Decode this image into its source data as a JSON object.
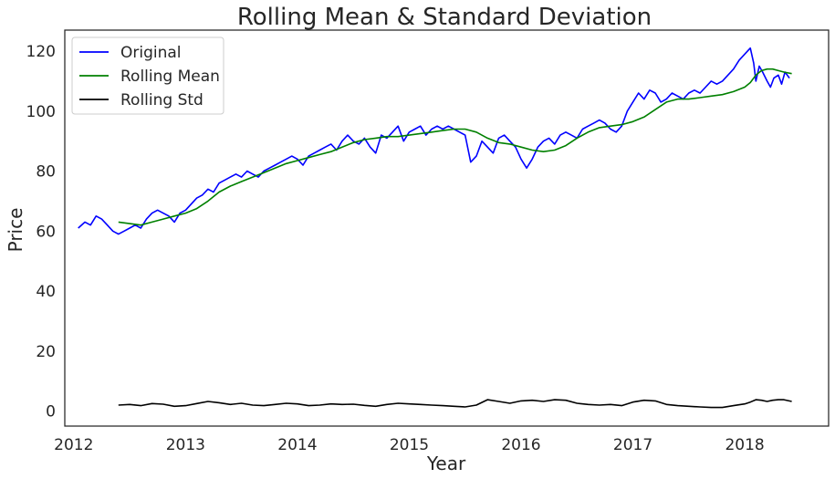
{
  "chart_data": {
    "type": "line",
    "title": "Rolling Mean & Standard Deviation",
    "xlabel": "Year",
    "ylabel": "Price",
    "xlim": [
      2011.92,
      2018.75
    ],
    "ylim": [
      -5,
      127
    ],
    "grid": false,
    "legend_position": "top-left",
    "x_ticks": [
      2012,
      2013,
      2014,
      2015,
      2016,
      2017,
      2018
    ],
    "y_ticks": [
      0,
      20,
      40,
      60,
      80,
      100,
      120
    ],
    "series": [
      {
        "name": "Original",
        "color": "#0000ff",
        "x": [
          2012.04,
          2012.1,
          2012.15,
          2012.2,
          2012.25,
          2012.3,
          2012.35,
          2012.4,
          2012.45,
          2012.5,
          2012.55,
          2012.6,
          2012.65,
          2012.7,
          2012.75,
          2012.8,
          2012.85,
          2012.9,
          2012.95,
          2013.0,
          2013.05,
          2013.1,
          2013.15,
          2013.2,
          2013.25,
          2013.3,
          2013.35,
          2013.4,
          2013.45,
          2013.5,
          2013.55,
          2013.6,
          2013.65,
          2013.7,
          2013.75,
          2013.8,
          2013.85,
          2013.9,
          2013.95,
          2014.0,
          2014.05,
          2014.1,
          2014.15,
          2014.2,
          2014.25,
          2014.3,
          2014.35,
          2014.4,
          2014.45,
          2014.5,
          2014.55,
          2014.6,
          2014.65,
          2014.7,
          2014.75,
          2014.8,
          2014.85,
          2014.9,
          2014.95,
          2015.0,
          2015.05,
          2015.1,
          2015.15,
          2015.2,
          2015.25,
          2015.3,
          2015.35,
          2015.4,
          2015.45,
          2015.5,
          2015.55,
          2015.6,
          2015.65,
          2015.7,
          2015.75,
          2015.8,
          2015.85,
          2015.9,
          2015.95,
          2016.0,
          2016.05,
          2016.1,
          2016.15,
          2016.2,
          2016.25,
          2016.3,
          2016.35,
          2016.4,
          2016.45,
          2016.5,
          2016.55,
          2016.6,
          2016.65,
          2016.7,
          2016.75,
          2016.8,
          2016.85,
          2016.9,
          2016.95,
          2017.0,
          2017.05,
          2017.1,
          2017.15,
          2017.2,
          2017.25,
          2017.3,
          2017.35,
          2017.4,
          2017.45,
          2017.5,
          2017.55,
          2017.6,
          2017.65,
          2017.7,
          2017.75,
          2017.8,
          2017.85,
          2017.9,
          2017.95,
          2018.0,
          2018.05,
          2018.08,
          2018.1,
          2018.13,
          2018.16,
          2018.2,
          2018.23,
          2018.26,
          2018.3,
          2018.33,
          2018.36,
          2018.4
        ],
        "y": [
          61,
          63,
          62,
          65,
          64,
          62,
          60,
          59,
          60,
          61,
          62,
          61,
          64,
          66,
          67,
          66,
          65,
          63,
          66,
          67,
          69,
          71,
          72,
          74,
          73,
          76,
          77,
          78,
          79,
          78,
          80,
          79,
          78,
          80,
          81,
          82,
          83,
          84,
          85,
          84,
          82,
          85,
          86,
          87,
          88,
          89,
          87,
          90,
          92,
          90,
          89,
          91,
          88,
          86,
          92,
          91,
          93,
          95,
          90,
          93,
          94,
          95,
          92,
          94,
          95,
          94,
          95,
          94,
          93,
          92,
          83,
          85,
          90,
          88,
          86,
          91,
          92,
          90,
          88,
          84,
          81,
          84,
          88,
          90,
          91,
          89,
          92,
          93,
          92,
          91,
          94,
          95,
          96,
          97,
          96,
          94,
          93,
          95,
          100,
          103,
          106,
          104,
          107,
          106,
          103,
          104,
          106,
          105,
          104,
          106,
          107,
          106,
          108,
          110,
          109,
          110,
          112,
          114,
          117,
          119,
          121,
          116,
          110,
          115,
          113,
          110,
          108,
          111,
          112,
          109,
          113,
          111
        ]
      },
      {
        "name": "Rolling Mean",
        "color": "#008000",
        "x": [
          2012.4,
          2012.5,
          2012.6,
          2012.7,
          2012.8,
          2012.9,
          2013.0,
          2013.1,
          2013.2,
          2013.3,
          2013.4,
          2013.5,
          2013.6,
          2013.7,
          2013.8,
          2013.9,
          2014.0,
          2014.1,
          2014.2,
          2014.3,
          2014.4,
          2014.5,
          2014.6,
          2014.7,
          2014.8,
          2014.9,
          2015.0,
          2015.1,
          2015.2,
          2015.3,
          2015.4,
          2015.5,
          2015.6,
          2015.7,
          2015.8,
          2015.9,
          2016.0,
          2016.1,
          2016.2,
          2016.3,
          2016.4,
          2016.5,
          2016.6,
          2016.7,
          2016.8,
          2016.9,
          2017.0,
          2017.1,
          2017.2,
          2017.3,
          2017.4,
          2017.5,
          2017.6,
          2017.7,
          2017.8,
          2017.9,
          2018.0,
          2018.05,
          2018.1,
          2018.15,
          2018.2,
          2018.25,
          2018.3,
          2018.35,
          2018.42
        ],
        "y": [
          63,
          62.5,
          62,
          63,
          64,
          65,
          66,
          67.5,
          70,
          73,
          75,
          76.5,
          78,
          79.5,
          81,
          82.5,
          83.5,
          84.5,
          85.5,
          86.5,
          88,
          89.5,
          90.5,
          91,
          91.5,
          91.5,
          92,
          92.5,
          93,
          93.5,
          94,
          94,
          93,
          91,
          89.5,
          89,
          88,
          87,
          86.5,
          87,
          88.5,
          91,
          93,
          94.5,
          95,
          95.5,
          96.5,
          98,
          100.5,
          103,
          104,
          104,
          104.5,
          105,
          105.5,
          106.5,
          108,
          109.5,
          112,
          113.5,
          114,
          114,
          113.5,
          113,
          112.5
        ]
      },
      {
        "name": "Rolling Std",
        "color": "#000000",
        "x": [
          2012.4,
          2012.5,
          2012.6,
          2012.7,
          2012.8,
          2012.9,
          2013.0,
          2013.1,
          2013.2,
          2013.3,
          2013.4,
          2013.5,
          2013.6,
          2013.7,
          2013.8,
          2013.9,
          2014.0,
          2014.1,
          2014.2,
          2014.3,
          2014.4,
          2014.5,
          2014.6,
          2014.7,
          2014.8,
          2014.9,
          2015.0,
          2015.1,
          2015.2,
          2015.3,
          2015.4,
          2015.5,
          2015.6,
          2015.7,
          2015.8,
          2015.9,
          2016.0,
          2016.1,
          2016.2,
          2016.3,
          2016.4,
          2016.5,
          2016.6,
          2016.7,
          2016.8,
          2016.9,
          2017.0,
          2017.1,
          2017.2,
          2017.3,
          2017.4,
          2017.5,
          2017.6,
          2017.7,
          2017.8,
          2017.9,
          2018.0,
          2018.05,
          2018.1,
          2018.15,
          2018.2,
          2018.25,
          2018.3,
          2018.35,
          2018.42
        ],
        "y": [
          2,
          2.2,
          1.8,
          2.5,
          2.3,
          1.6,
          1.8,
          2.5,
          3.2,
          2.8,
          2.2,
          2.6,
          2.0,
          1.8,
          2.2,
          2.6,
          2.4,
          1.8,
          2.0,
          2.4,
          2.2,
          2.3,
          1.9,
          1.6,
          2.2,
          2.6,
          2.4,
          2.2,
          2.0,
          1.8,
          1.6,
          1.4,
          2.0,
          3.8,
          3.2,
          2.6,
          3.4,
          3.6,
          3.2,
          3.8,
          3.6,
          2.6,
          2.2,
          2.0,
          2.2,
          1.8,
          3.0,
          3.6,
          3.4,
          2.2,
          1.8,
          1.6,
          1.4,
          1.2,
          1.2,
          1.8,
          2.4,
          3.0,
          3.8,
          3.6,
          3.2,
          3.6,
          3.8,
          3.8,
          3.2
        ]
      }
    ]
  }
}
